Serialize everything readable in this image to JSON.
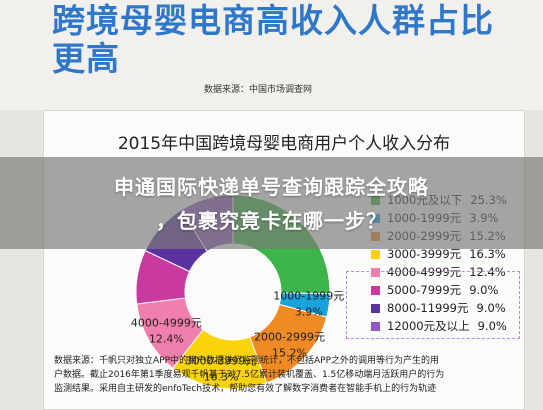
{
  "page": {
    "headline": "跨境母婴电商高收入人群占比更高",
    "source_top": "数据来源：中国市场调查网",
    "overlay_line1": "申通国际快递单号查询跟踪全攻略",
    "overlay_line2": "，包裹究竟卡在哪一步？"
  },
  "chart_data": {
    "type": "pie",
    "title": "2015年中国跨境母婴电商用户个人收入分布",
    "categories": [
      "1000元及以下",
      "1000-1999元",
      "2000-2999元",
      "3000-3999元",
      "4000-4999元",
      "5000-7999元",
      "8000-11999元",
      "12000元及以上"
    ],
    "values": [
      25.3,
      3.9,
      15.2,
      16.3,
      12.4,
      9.0,
      9.0,
      9.0
    ],
    "legend_labels": [
      "1000元及以下",
      "1000-1999元",
      "2000-2999元",
      "3000-3999元",
      "4000-4999元",
      "5000-7999元",
      "8000-11999元",
      "12000元及以上"
    ],
    "legend_pct": [
      "25.3%",
      "3.9%",
      "15.2%",
      "16.3%",
      "12.4%",
      "9.0%",
      "9.0%",
      "9.0%"
    ],
    "colors": [
      "#3cb54a",
      "#1aa2dd",
      "#f08a24",
      "#fbd30c",
      "#f17fae",
      "#c93aa0",
      "#5b33a1",
      "#8e59c4"
    ],
    "slice_labels": [
      "",
      "1000-1999元",
      "2000-2999元",
      "3000-3999元",
      "4000-4999元",
      "",
      "",
      ""
    ],
    "slice_values": [
      "",
      "3.9%",
      "15.2%",
      "16.3%",
      "12.4%",
      "",
      "",
      ""
    ],
    "legend_position": "right",
    "highlight": "dashed box around 5000-7999元, 8000-11999元, 12000元及以上"
  },
  "notes": {
    "line1": "数据来源：千帆只对独立APP中的用户数据进行监测统计，不包括APP之外的调用等行为产生的用",
    "line2": "户数据。截止2016年第1季度易观千帆基于对7.5亿累计装机覆盖、1.5亿移动端月活跃用户的行为",
    "line3": "监测结果。采用自主研发的enfoTech技术，帮助您有效了解数字消费者在智能手机上的行为轨迹"
  }
}
